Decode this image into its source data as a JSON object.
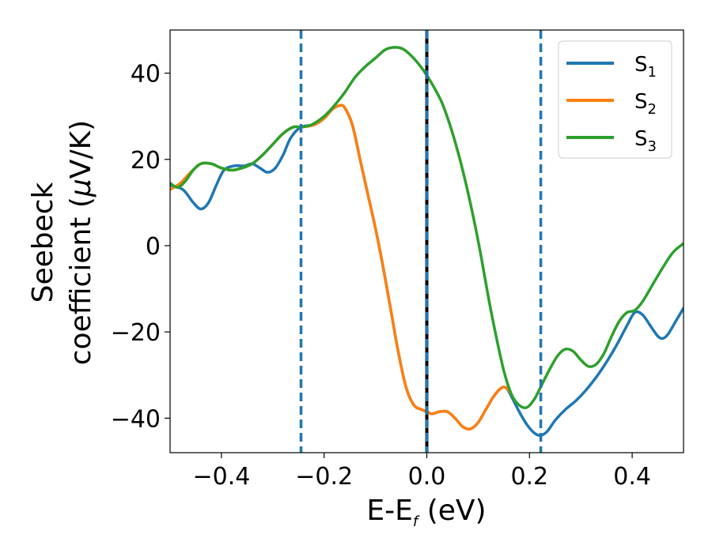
{
  "chart_data": {
    "type": "line",
    "title": "",
    "xlabel": {
      "main": "E-E",
      "sub": "f",
      "unit": " (eV)"
    },
    "ylabel": {
      "line1": "Seebeck",
      "line2_prefix": "coefficient  (",
      "line2_mu": "μ",
      "line2_suffix": "V/K)"
    },
    "xlim": [
      -0.5,
      0.5
    ],
    "ylim": [
      -48,
      50
    ],
    "x_ticks": [
      {
        "value": -0.4,
        "label": "−0.4"
      },
      {
        "value": -0.2,
        "label": "−0.2"
      },
      {
        "value": 0.0,
        "label": "0.0"
      },
      {
        "value": 0.2,
        "label": "0.2"
      },
      {
        "value": 0.4,
        "label": "0.4"
      }
    ],
    "y_ticks": [
      {
        "value": 40,
        "label": "40"
      },
      {
        "value": 20,
        "label": "20"
      },
      {
        "value": 0,
        "label": "0"
      },
      {
        "value": -20,
        "label": "−20"
      },
      {
        "value": -40,
        "label": "−40"
      }
    ],
    "legend_position": "top-right",
    "vlines": [
      {
        "x": -0.245,
        "color": "#1f77b4",
        "style": "dashed"
      },
      {
        "x": 0.0,
        "color": "#000000",
        "style": "solid"
      },
      {
        "x": 0.0,
        "color": "#1f77b4",
        "style": "dashed"
      },
      {
        "x": 0.222,
        "color": "#1f77b4",
        "style": "dashed"
      }
    ],
    "series": [
      {
        "name": "S",
        "sub": "1",
        "color": "#1f77b4",
        "points": [
          [
            -0.5,
            14
          ],
          [
            -0.475,
            13
          ],
          [
            -0.455,
            10
          ],
          [
            -0.44,
            8.5
          ],
          [
            -0.425,
            10
          ],
          [
            -0.41,
            14
          ],
          [
            -0.395,
            17.5
          ],
          [
            -0.375,
            18.5
          ],
          [
            -0.355,
            18.5
          ],
          [
            -0.34,
            19
          ],
          [
            -0.325,
            18
          ],
          [
            -0.31,
            17
          ],
          [
            -0.295,
            18
          ],
          [
            -0.28,
            21
          ],
          [
            -0.265,
            25
          ],
          [
            -0.245,
            27.5
          ],
          [
            -0.22,
            28
          ],
          [
            -0.2,
            29.5
          ],
          [
            -0.185,
            31.5
          ],
          [
            -0.17,
            32.5
          ],
          [
            -0.16,
            32
          ],
          [
            -0.145,
            28
          ],
          [
            -0.13,
            20
          ],
          [
            -0.115,
            12
          ],
          [
            -0.1,
            4
          ],
          [
            -0.085,
            -5
          ],
          [
            -0.07,
            -15
          ],
          [
            -0.055,
            -25
          ],
          [
            -0.04,
            -33
          ],
          [
            -0.025,
            -37
          ],
          [
            -0.01,
            -38
          ],
          [
            0.0,
            -38.5
          ],
          [
            0.01,
            -39
          ],
          [
            0.025,
            -38.5
          ],
          [
            0.04,
            -38.5
          ],
          [
            0.055,
            -40
          ],
          [
            0.07,
            -42
          ],
          [
            0.085,
            -42.5
          ],
          [
            0.1,
            -41
          ],
          [
            0.115,
            -38
          ],
          [
            0.13,
            -35
          ],
          [
            0.145,
            -33
          ],
          [
            0.155,
            -33
          ],
          [
            0.165,
            -35
          ],
          [
            0.18,
            -38.5
          ],
          [
            0.195,
            -41.5
          ],
          [
            0.21,
            -43.5
          ],
          [
            0.222,
            -44
          ],
          [
            0.235,
            -43
          ],
          [
            0.25,
            -40.5
          ],
          [
            0.27,
            -38
          ],
          [
            0.29,
            -36
          ],
          [
            0.31,
            -33.5
          ],
          [
            0.33,
            -30.5
          ],
          [
            0.35,
            -27
          ],
          [
            0.37,
            -23
          ],
          [
            0.39,
            -18.5
          ],
          [
            0.405,
            -15.5
          ],
          [
            0.42,
            -16
          ],
          [
            0.435,
            -18.5
          ],
          [
            0.45,
            -21
          ],
          [
            0.46,
            -21.5
          ],
          [
            0.47,
            -20.5
          ],
          [
            0.485,
            -17.5
          ],
          [
            0.5,
            -14.5
          ]
        ]
      },
      {
        "name": "S",
        "sub": "2",
        "color": "#ff7f0e",
        "points": [
          [
            -0.5,
            13
          ],
          [
            -0.48,
            14.5
          ],
          [
            -0.46,
            17
          ],
          [
            -0.44,
            19
          ],
          [
            -0.42,
            19
          ],
          [
            -0.4,
            18
          ],
          [
            -0.38,
            17.5
          ],
          [
            -0.36,
            18
          ],
          [
            -0.34,
            19
          ],
          [
            -0.32,
            21
          ],
          [
            -0.3,
            23.5
          ],
          [
            -0.28,
            26
          ],
          [
            -0.26,
            27.5
          ],
          [
            -0.245,
            27.5
          ],
          [
            -0.22,
            28
          ],
          [
            -0.2,
            29.5
          ],
          [
            -0.185,
            31.5
          ],
          [
            -0.17,
            32.5
          ],
          [
            -0.16,
            32
          ],
          [
            -0.145,
            28
          ],
          [
            -0.13,
            20
          ],
          [
            -0.115,
            12
          ],
          [
            -0.1,
            4
          ],
          [
            -0.085,
            -5
          ],
          [
            -0.07,
            -15
          ],
          [
            -0.055,
            -25
          ],
          [
            -0.04,
            -33
          ],
          [
            -0.025,
            -37
          ],
          [
            -0.01,
            -38
          ],
          [
            0.0,
            -38.5
          ],
          [
            0.01,
            -39
          ],
          [
            0.025,
            -38.5
          ],
          [
            0.04,
            -38.5
          ],
          [
            0.055,
            -40
          ],
          [
            0.07,
            -42
          ],
          [
            0.085,
            -42.5
          ],
          [
            0.1,
            -41
          ],
          [
            0.115,
            -38
          ],
          [
            0.13,
            -35
          ],
          [
            0.145,
            -33
          ],
          [
            0.155,
            -33
          ],
          [
            0.165,
            -34.5
          ]
        ]
      },
      {
        "name": "S",
        "sub": "3",
        "color": "#2ca02c",
        "points": [
          [
            -0.5,
            14.5
          ],
          [
            -0.485,
            13.5
          ],
          [
            -0.47,
            15
          ],
          [
            -0.455,
            17.5
          ],
          [
            -0.44,
            19
          ],
          [
            -0.42,
            19
          ],
          [
            -0.4,
            18
          ],
          [
            -0.38,
            17.5
          ],
          [
            -0.36,
            18
          ],
          [
            -0.34,
            19
          ],
          [
            -0.32,
            21
          ],
          [
            -0.3,
            23.5
          ],
          [
            -0.28,
            26
          ],
          [
            -0.26,
            27.5
          ],
          [
            -0.245,
            27.5
          ],
          [
            -0.225,
            28
          ],
          [
            -0.2,
            30
          ],
          [
            -0.18,
            32.5
          ],
          [
            -0.16,
            35.5
          ],
          [
            -0.14,
            39
          ],
          [
            -0.12,
            41.5
          ],
          [
            -0.1,
            43.5
          ],
          [
            -0.08,
            45.5
          ],
          [
            -0.06,
            46
          ],
          [
            -0.045,
            45.5
          ],
          [
            -0.03,
            44
          ],
          [
            -0.015,
            42
          ],
          [
            0.0,
            39.5
          ],
          [
            0.015,
            36.5
          ],
          [
            0.03,
            33
          ],
          [
            0.045,
            28
          ],
          [
            0.06,
            22
          ],
          [
            0.075,
            15
          ],
          [
            0.09,
            7
          ],
          [
            0.105,
            -2
          ],
          [
            0.12,
            -12
          ],
          [
            0.135,
            -21
          ],
          [
            0.15,
            -29
          ],
          [
            0.165,
            -34.5
          ],
          [
            0.18,
            -37
          ],
          [
            0.195,
            -37.5
          ],
          [
            0.21,
            -35.5
          ],
          [
            0.225,
            -32
          ],
          [
            0.24,
            -28.5
          ],
          [
            0.255,
            -25.5
          ],
          [
            0.27,
            -24
          ],
          [
            0.285,
            -24.5
          ],
          [
            0.3,
            -26.5
          ],
          [
            0.315,
            -28
          ],
          [
            0.33,
            -27.5
          ],
          [
            0.345,
            -25
          ],
          [
            0.36,
            -21
          ],
          [
            0.375,
            -17.5
          ],
          [
            0.39,
            -15.5
          ],
          [
            0.405,
            -15
          ],
          [
            0.42,
            -13
          ],
          [
            0.44,
            -9
          ],
          [
            0.46,
            -5
          ],
          [
            0.48,
            -1.5
          ],
          [
            0.5,
            0.5
          ]
        ]
      }
    ]
  }
}
